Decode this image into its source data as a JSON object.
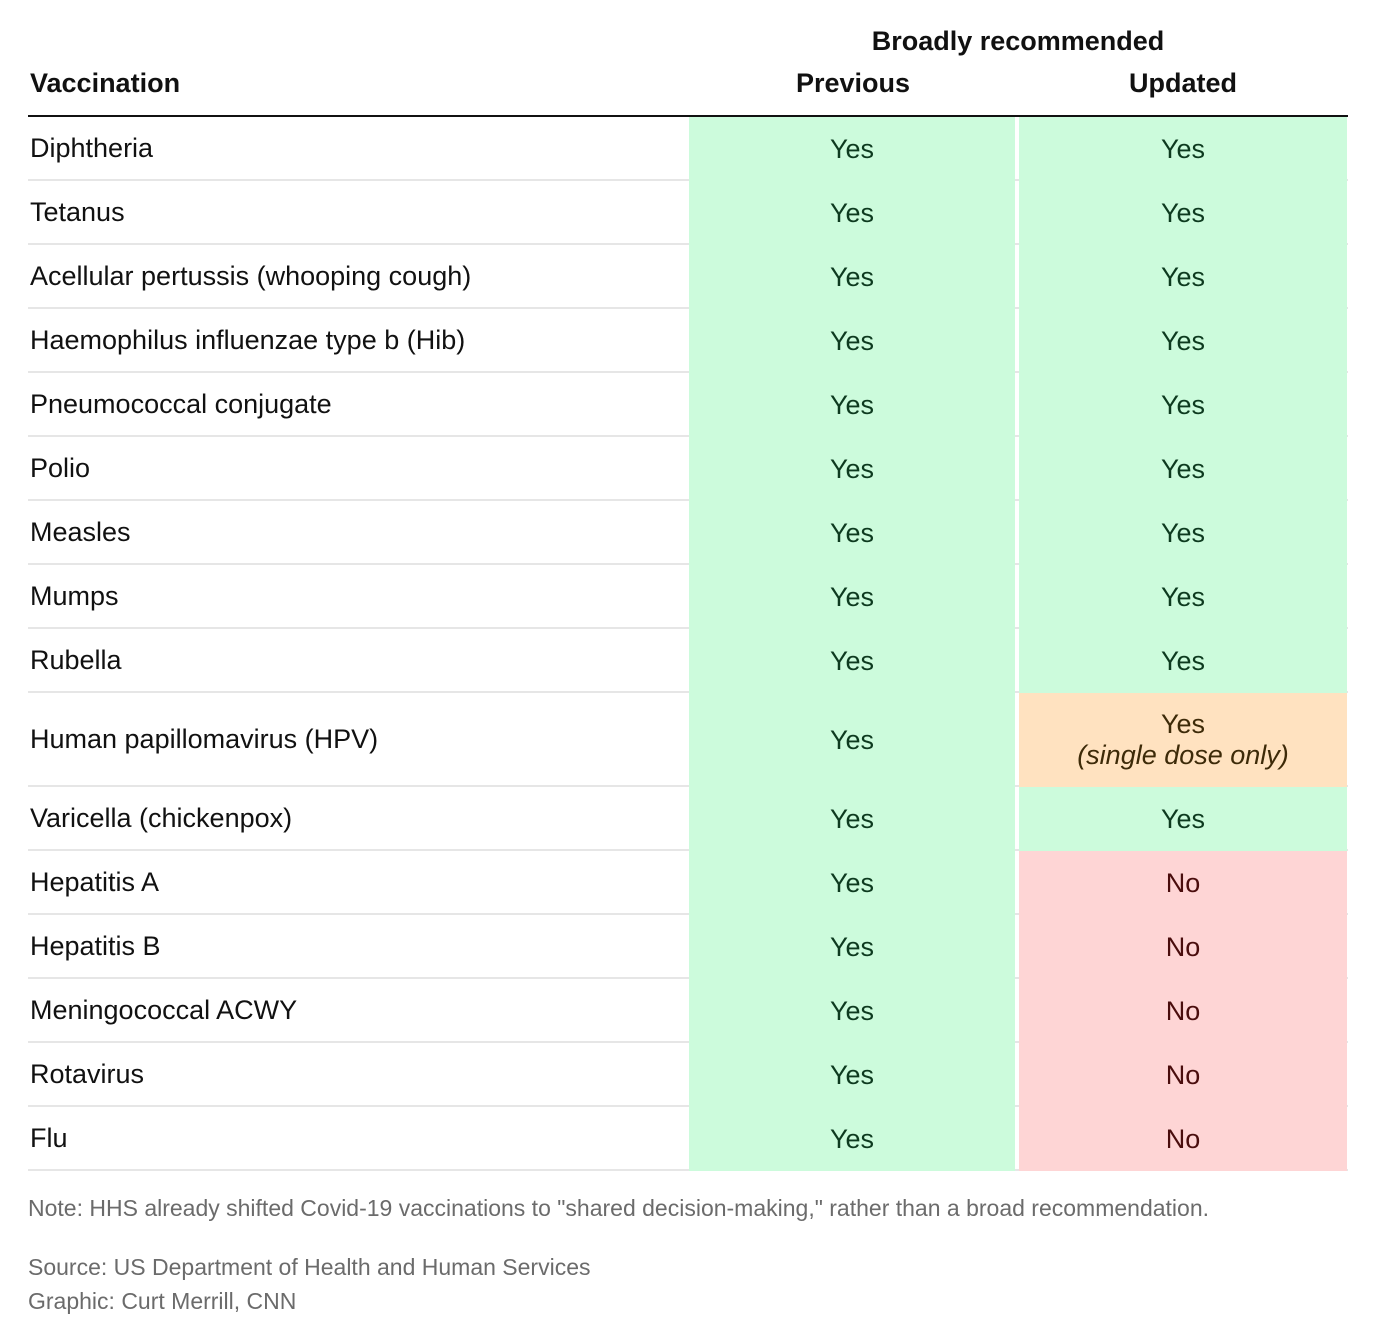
{
  "chart_data": {
    "type": "table",
    "group_header": "Broadly recommended",
    "columns": [
      "Vaccination",
      "Previous",
      "Updated"
    ],
    "rows": [
      {
        "name": "Diphtheria",
        "previous": "Yes",
        "updated": "Yes",
        "updated_status": "yes",
        "updated_note": ""
      },
      {
        "name": "Tetanus",
        "previous": "Yes",
        "updated": "Yes",
        "updated_status": "yes",
        "updated_note": ""
      },
      {
        "name": "Acellular pertussis (whooping cough)",
        "previous": "Yes",
        "updated": "Yes",
        "updated_status": "yes",
        "updated_note": ""
      },
      {
        "name": "Haemophilus influenzae type b (Hib)",
        "previous": "Yes",
        "updated": "Yes",
        "updated_status": "yes",
        "updated_note": ""
      },
      {
        "name": "Pneumococcal conjugate",
        "previous": "Yes",
        "updated": "Yes",
        "updated_status": "yes",
        "updated_note": ""
      },
      {
        "name": "Polio",
        "previous": "Yes",
        "updated": "Yes",
        "updated_status": "yes",
        "updated_note": ""
      },
      {
        "name": "Measles",
        "previous": "Yes",
        "updated": "Yes",
        "updated_status": "yes",
        "updated_note": ""
      },
      {
        "name": "Mumps",
        "previous": "Yes",
        "updated": "Yes",
        "updated_status": "yes",
        "updated_note": ""
      },
      {
        "name": "Rubella",
        "previous": "Yes",
        "updated": "Yes",
        "updated_status": "yes",
        "updated_note": ""
      },
      {
        "name": "Human papillomavirus (HPV)",
        "previous": "Yes",
        "updated": "Yes",
        "updated_status": "partial",
        "updated_note": "(single dose only)"
      },
      {
        "name": "Varicella (chickenpox)",
        "previous": "Yes",
        "updated": "Yes",
        "updated_status": "yes",
        "updated_note": ""
      },
      {
        "name": "Hepatitis A",
        "previous": "Yes",
        "updated": "No",
        "updated_status": "no",
        "updated_note": ""
      },
      {
        "name": "Hepatitis B",
        "previous": "Yes",
        "updated": "No",
        "updated_status": "no",
        "updated_note": ""
      },
      {
        "name": "Meningococcal ACWY",
        "previous": "Yes",
        "updated": "No",
        "updated_status": "no",
        "updated_note": ""
      },
      {
        "name": "Rotavirus",
        "previous": "Yes",
        "updated": "No",
        "updated_status": "no",
        "updated_note": ""
      },
      {
        "name": "Flu",
        "previous": "Yes",
        "updated": "No",
        "updated_status": "no",
        "updated_note": ""
      }
    ],
    "colors": {
      "yes": "#ccfbdc",
      "no": "#fed5d5",
      "partial": "#ffe2c0"
    }
  },
  "footer": {
    "note": "Note: HHS already shifted Covid-19 vaccinations to \"shared decision-making,\" rather than a broad recommendation.",
    "source": "Source: US Department of Health and Human Services",
    "credit": "Graphic: Curt Merrill, CNN"
  }
}
